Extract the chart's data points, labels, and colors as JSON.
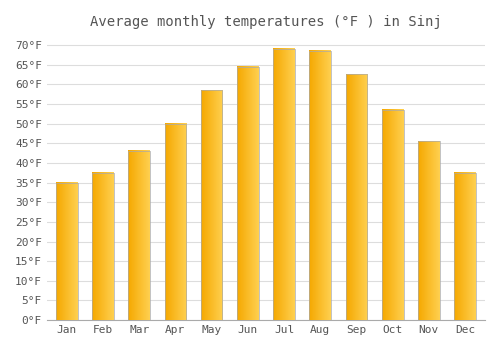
{
  "title": "Average monthly temperatures (°F ) in Sinj",
  "months": [
    "Jan",
    "Feb",
    "Mar",
    "Apr",
    "May",
    "Jun",
    "Jul",
    "Aug",
    "Sep",
    "Oct",
    "Nov",
    "Dec"
  ],
  "values": [
    35,
    37.5,
    43,
    50,
    58.5,
    64.5,
    69,
    68.5,
    62.5,
    53.5,
    45.5,
    37.5
  ],
  "bar_color_left": "#F5A800",
  "bar_color_right": "#FFD050",
  "bar_edge_color": "#AAAAAA",
  "background_color": "#FFFFFF",
  "plot_bg_color": "#FFFFFF",
  "grid_color": "#DDDDDD",
  "text_color": "#555555",
  "ylim": [
    0,
    72
  ],
  "yticks": [
    0,
    5,
    10,
    15,
    20,
    25,
    30,
    35,
    40,
    45,
    50,
    55,
    60,
    65,
    70
  ],
  "ytick_labels": [
    "0°F",
    "5°F",
    "10°F",
    "15°F",
    "20°F",
    "25°F",
    "30°F",
    "35°F",
    "40°F",
    "45°F",
    "50°F",
    "55°F",
    "60°F",
    "65°F",
    "70°F"
  ],
  "title_fontsize": 10,
  "tick_fontsize": 8,
  "font_family": "monospace",
  "bar_width": 0.6
}
